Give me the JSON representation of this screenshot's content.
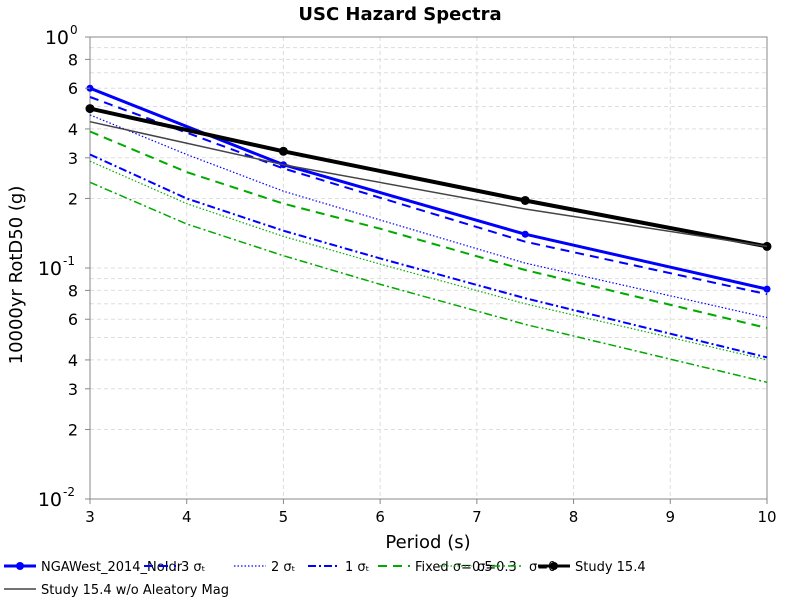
{
  "chart_data": {
    "type": "line",
    "title": "USC Hazard Spectra",
    "xlabel": "Period (s)",
    "ylabel": "10000yr RotD50 (g)",
    "xlim": [
      3,
      10
    ],
    "ylim": [
      0.01,
      1
    ],
    "yscale": "log",
    "grid": true,
    "legend_position": "bottom",
    "x_ticks": [
      3,
      4,
      5,
      6,
      7,
      8,
      9,
      10
    ],
    "y_ticks": [
      {
        "value": 0.01,
        "mant": "10",
        "exp": "-2",
        "major": true
      },
      {
        "value": 0.02,
        "mant": "2",
        "exp": "",
        "major": false
      },
      {
        "value": 0.03,
        "mant": "3",
        "exp": "",
        "major": false
      },
      {
        "value": 0.04,
        "mant": "4",
        "exp": "",
        "major": false
      },
      {
        "value": 0.06,
        "mant": "6",
        "exp": "",
        "major": false
      },
      {
        "value": 0.08,
        "mant": "8",
        "exp": "",
        "major": false
      },
      {
        "value": 0.1,
        "mant": "10",
        "exp": "-1",
        "major": true
      },
      {
        "value": 0.2,
        "mant": "2",
        "exp": "",
        "major": false
      },
      {
        "value": 0.3,
        "mant": "3",
        "exp": "",
        "major": false
      },
      {
        "value": 0.4,
        "mant": "4",
        "exp": "",
        "major": false
      },
      {
        "value": 0.6,
        "mant": "6",
        "exp": "",
        "major": false
      },
      {
        "value": 0.8,
        "mant": "8",
        "exp": "",
        "major": false
      },
      {
        "value": 1,
        "mant": "10",
        "exp": "0",
        "major": true
      }
    ],
    "series": [
      {
        "name": "NGAWest_2014_NoIdr",
        "color": "#0000ff",
        "style": "solid",
        "width": 3,
        "marker": "circle",
        "x": [
          3,
          5,
          7.5,
          10
        ],
        "y": [
          0.6,
          0.28,
          0.14,
          0.081
        ]
      },
      {
        "name": "3 σₜ",
        "color": "#0000ff",
        "style": "dashed",
        "width": 2,
        "marker": "none",
        "x": [
          3,
          5,
          7.5,
          10
        ],
        "y": [
          0.55,
          0.27,
          0.13,
          0.077
        ]
      },
      {
        "name": "2 σₜ",
        "color": "#0000ff",
        "style": "dotted",
        "width": 1.2,
        "marker": "none",
        "x": [
          3,
          4,
          5,
          7.5,
          10
        ],
        "y": [
          0.46,
          0.31,
          0.215,
          0.105,
          0.061
        ]
      },
      {
        "name": "1 σₜ",
        "color": "#0000ff",
        "style": "dashdot",
        "width": 2,
        "marker": "none",
        "x": [
          3,
          4,
          5,
          6,
          7.5,
          10
        ],
        "y": [
          0.31,
          0.2,
          0.145,
          0.11,
          0.074,
          0.041
        ]
      },
      {
        "name": "Fixed σ=0.5",
        "color": "#00aa00",
        "style": "dashed",
        "width": 2,
        "marker": "none",
        "x": [
          3,
          4,
          5,
          6,
          7.5,
          10
        ],
        "y": [
          0.39,
          0.26,
          0.19,
          0.148,
          0.098,
          0.055
        ]
      },
      {
        "name": "σ=0.3",
        "color": "#00aa00",
        "style": "dotted",
        "width": 1.2,
        "marker": "none",
        "x": [
          3,
          4,
          5,
          6,
          7.5,
          10
        ],
        "y": [
          0.29,
          0.19,
          0.137,
          0.104,
          0.07,
          0.04
        ]
      },
      {
        "name": "σ=0",
        "color": "#00aa00",
        "style": "dashdot",
        "width": 1.5,
        "marker": "none",
        "x": [
          3,
          4,
          5,
          6,
          7.5,
          10
        ],
        "y": [
          0.235,
          0.155,
          0.113,
          0.085,
          0.057,
          0.032
        ]
      },
      {
        "name": "Study 15.4",
        "color": "#000000",
        "style": "solid",
        "width": 4,
        "marker": "circle",
        "x": [
          3,
          5,
          7.5,
          10
        ],
        "y": [
          0.49,
          0.32,
          0.196,
          0.124
        ]
      },
      {
        "name": "Study 15.4 w/o Aleatory Mag",
        "color": "#444444",
        "style": "solid",
        "width": 1.5,
        "marker": "none",
        "x": [
          3,
          5,
          7.5,
          10
        ],
        "y": [
          0.43,
          0.28,
          0.18,
          0.124
        ]
      }
    ]
  }
}
